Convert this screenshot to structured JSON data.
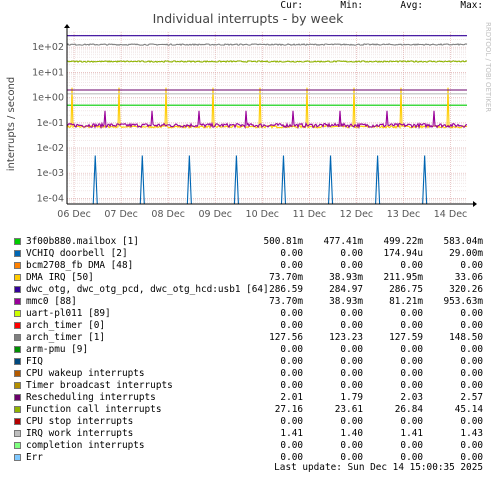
{
  "chart_data": {
    "type": "line",
    "title": "Individual interrupts - by week",
    "ylabel": "interrupts / second",
    "watermark": "RRDTOOL / TOBI OETIKER",
    "yscale": "log",
    "ylim": [
      6e-05,
      400
    ],
    "y_ticks": [
      {
        "value": 0.0001,
        "label": "1e-04"
      },
      {
        "value": 0.001,
        "label": "1e-03"
      },
      {
        "value": 0.01,
        "label": "1e-02"
      },
      {
        "value": 0.1,
        "label": "1e-01"
      },
      {
        "value": 1,
        "label": "1e+00"
      },
      {
        "value": 10,
        "label": "1e+01"
      },
      {
        "value": 100,
        "label": "1e+02"
      }
    ],
    "x_ticks": [
      "06 Dec",
      "07 Dec",
      "08 Dec",
      "09 Dec",
      "10 Dec",
      "11 Dec",
      "12 Dec",
      "13 Dec",
      "14 Dec"
    ],
    "xlim_days": [
      -0.15,
      8.35
    ],
    "grid": true,
    "series": [
      {
        "name": "3f00b880.mailbox [1]",
        "color": "#00cc00",
        "shape": "flat",
        "base": 0.5
      },
      {
        "name": "VCHIQ doorbell [2]",
        "color": "#0066b3",
        "shape": "spikes_only",
        "spike": 0.005,
        "spikes_per_day": 1,
        "offset": 0.45
      },
      {
        "name": "bcm2708_fb DMA [48]",
        "color": "#ff8000",
        "shape": "none"
      },
      {
        "name": "DMA IRQ [50]",
        "color": "#ffcc00",
        "shape": "spiky",
        "base": 0.07,
        "spike": 2.5,
        "spikes_per_day": 1,
        "offset": 0.95
      },
      {
        "name": "dwc_otg, dwc_otg_pcd, dwc_otg_hcd:usb1 [64]",
        "color": "#330099",
        "shape": "flat",
        "base": 286
      },
      {
        "name": "mmc0 [88]",
        "color": "#990099",
        "shape": "noisy_spiky",
        "base": 0.08,
        "spike": 0.3,
        "spikes_per_day": 1,
        "offset": 0.65
      },
      {
        "name": "uart-pl011 [89]",
        "color": "#ccff00",
        "shape": "none"
      },
      {
        "name": "arch_timer [0]",
        "color": "#ff0000",
        "shape": "none"
      },
      {
        "name": "arch_timer [1]",
        "color": "#808080",
        "shape": "noisy",
        "base": 127
      },
      {
        "name": "arm-pmu [9]",
        "color": "#008f00",
        "shape": "none"
      },
      {
        "name": "FIQ",
        "color": "#00487d",
        "shape": "none"
      },
      {
        "name": "CPU wakeup interrupts",
        "color": "#b35a00",
        "shape": "none"
      },
      {
        "name": "Timer broadcast interrupts",
        "color": "#b38f00",
        "shape": "none"
      },
      {
        "name": "Rescheduling interrupts",
        "color": "#6b006b",
        "shape": "flat",
        "base": 2.0
      },
      {
        "name": "Function call interrupts",
        "color": "#8fb300",
        "shape": "noisy",
        "base": 27
      },
      {
        "name": "CPU stop interrupts",
        "color": "#b30000",
        "shape": "none"
      },
      {
        "name": "IRQ work interrupts",
        "color": "#bebebe",
        "shape": "flat",
        "base": 1.41
      },
      {
        "name": "completion interrupts",
        "color": "#80ff80",
        "shape": "none"
      },
      {
        "name": "Err",
        "color": "#80c9ff",
        "shape": "none"
      }
    ],
    "legend": {
      "headers": [
        "Cur:",
        "Min:",
        "Avg:",
        "Max:"
      ],
      "rows": [
        [
          "500.81m",
          "477.41m",
          "499.22m",
          "583.04m"
        ],
        [
          "0.00",
          "0.00",
          "174.94u",
          "29.00m"
        ],
        [
          "0.00",
          "0.00",
          "0.00",
          "0.00"
        ],
        [
          "73.70m",
          "38.93m",
          "211.95m",
          "33.06"
        ],
        [
          "286.59",
          "284.97",
          "286.75",
          "320.26"
        ],
        [
          "73.70m",
          "38.93m",
          "81.21m",
          "953.63m"
        ],
        [
          "0.00",
          "0.00",
          "0.00",
          "0.00"
        ],
        [
          "0.00",
          "0.00",
          "0.00",
          "0.00"
        ],
        [
          "127.56",
          "123.23",
          "127.59",
          "148.50"
        ],
        [
          "0.00",
          "0.00",
          "0.00",
          "0.00"
        ],
        [
          "0.00",
          "0.00",
          "0.00",
          "0.00"
        ],
        [
          "0.00",
          "0.00",
          "0.00",
          "0.00"
        ],
        [
          "0.00",
          "0.00",
          "0.00",
          "0.00"
        ],
        [
          "2.01",
          "1.79",
          "2.03",
          "2.57"
        ],
        [
          "27.16",
          "23.61",
          "26.84",
          "45.14"
        ],
        [
          "0.00",
          "0.00",
          "0.00",
          "0.00"
        ],
        [
          "1.41",
          "1.40",
          "1.41",
          "1.43"
        ],
        [
          "0.00",
          "0.00",
          "0.00",
          "0.00"
        ],
        [
          "0.00",
          "0.00",
          "0.00",
          "0.00"
        ]
      ]
    },
    "last_update": "Last update: Sun Dec 14 15:00:35 2025"
  }
}
